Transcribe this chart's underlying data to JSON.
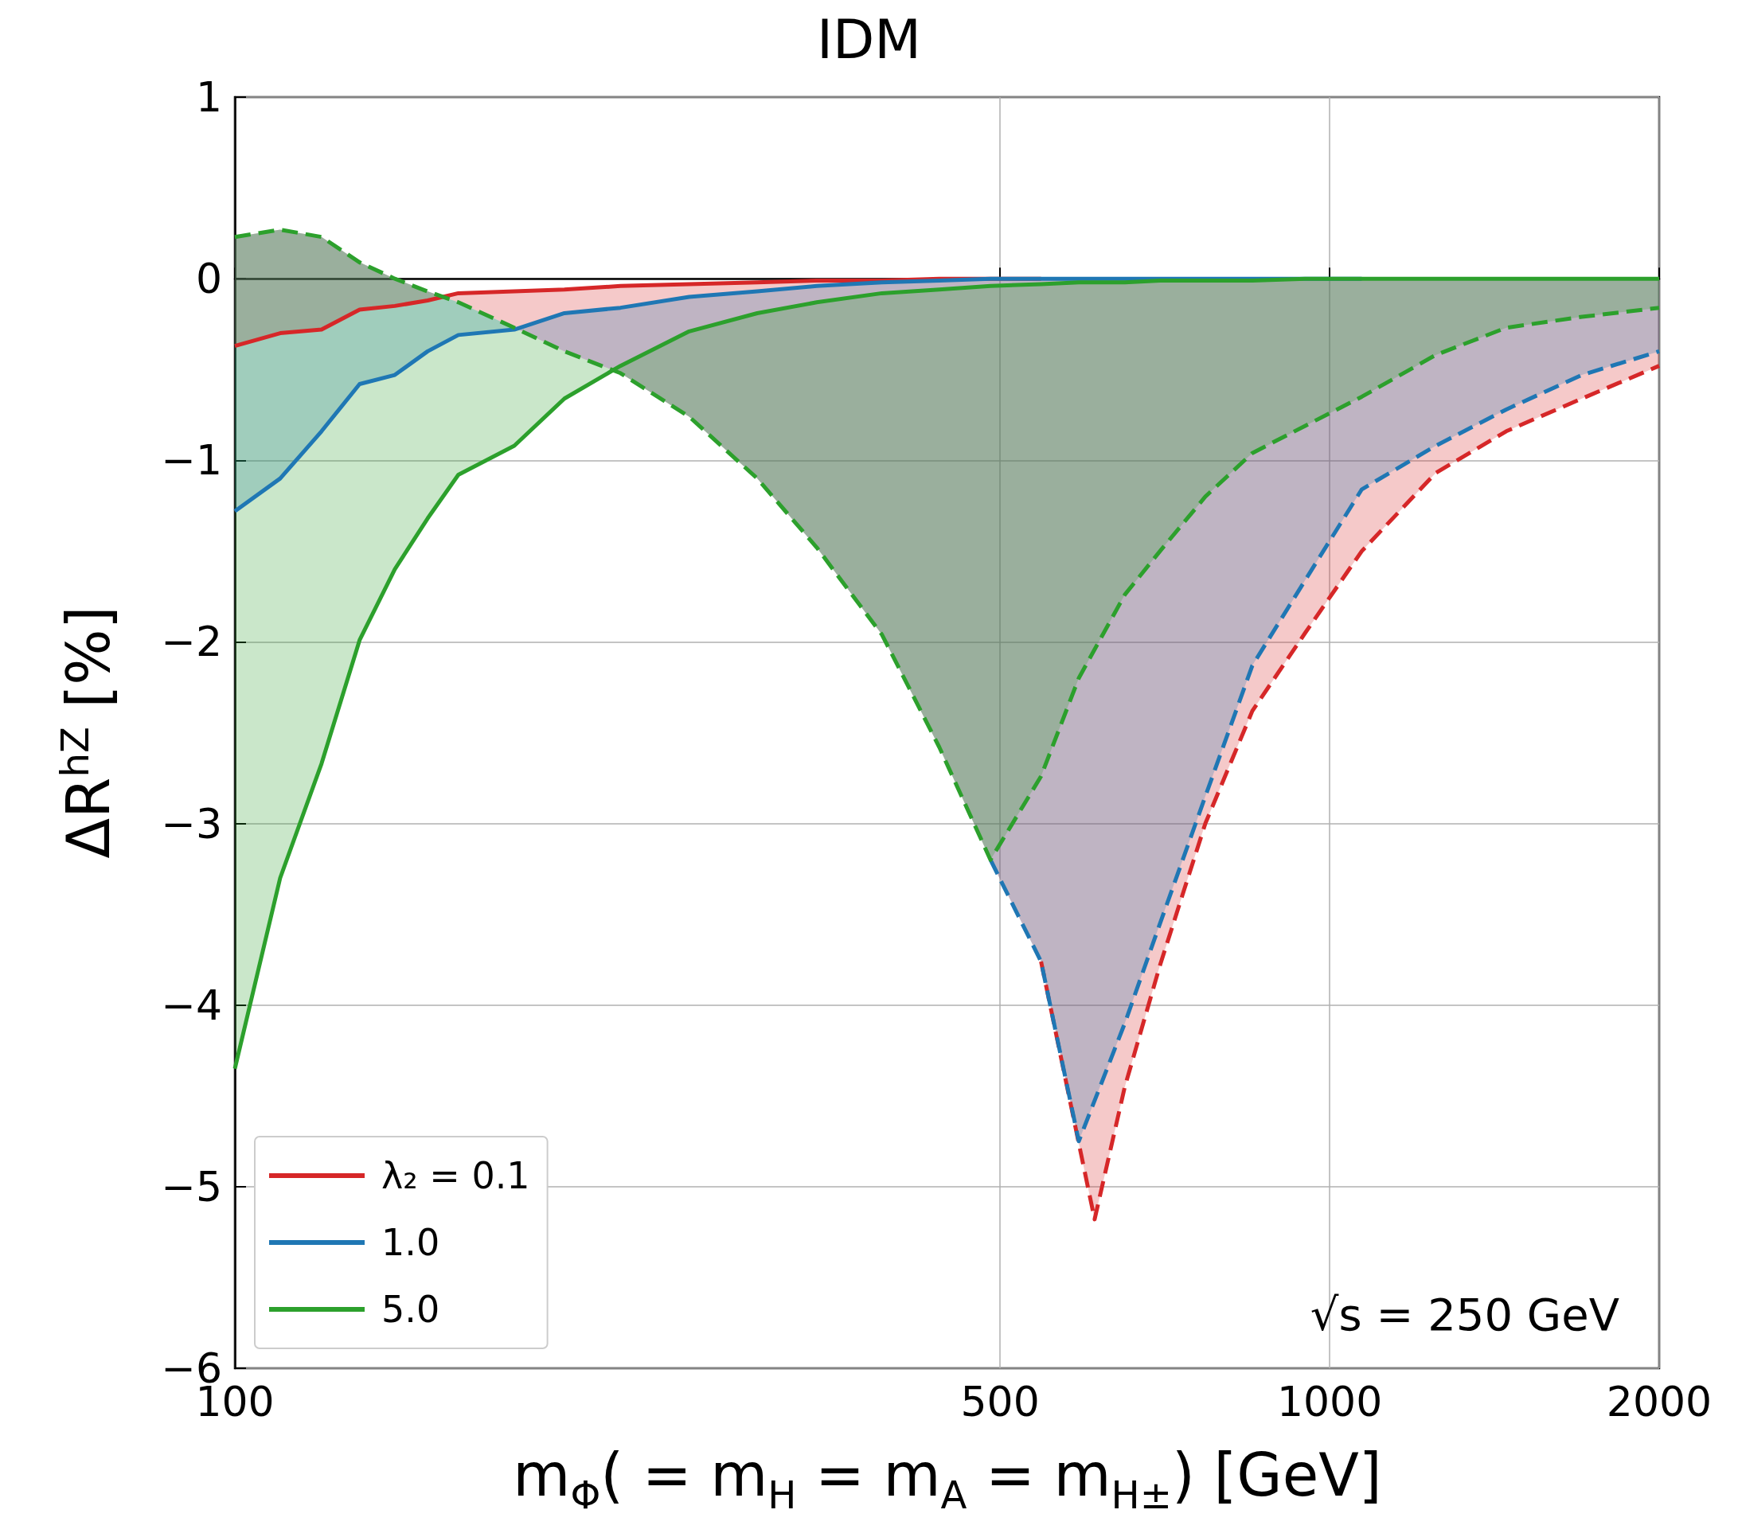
{
  "chart_data": {
    "type": "line",
    "title": "IDM",
    "xlabel": "m$_{Φ}$( = m$_{H}$ = m$_{A}$ = m$_{H±}$) [GeV]",
    "ylabel": "ΔR$^{hZ}$ [%]",
    "log": "x",
    "xlim": [
      100,
      2000
    ],
    "xticks": [
      100,
      500,
      1000,
      2000
    ],
    "ylim": [
      -6,
      1
    ],
    "yticks": [
      -6,
      -5,
      -4,
      -3,
      -2,
      -1,
      0,
      1
    ],
    "grid": true,
    "legend": "bottom left",
    "line_style": "solid",
    "marker": "none",
    "annotations": [
      "√s = 250 GeV"
    ],
    "series": [
      {
        "name": "λ₂ = 0.1",
        "color": "#d62728",
        "x": [
          100,
          110,
          120,
          130,
          140,
          150,
          160,
          180,
          200,
          225,
          260,
          300,
          340,
          390,
          440,
          490,
          545,
          610,
          650,
          700,
          770,
          850,
          950,
          1070,
          1250,
          1450,
          1700,
          2000
        ],
        "values": [
          -0.37,
          -0.3,
          -0.28,
          -0.17,
          -0.15,
          -0.12,
          -0.08,
          -0.07,
          -0.06,
          -0.04,
          -0.03,
          -0.02,
          -0.01,
          -0.01,
          0,
          0,
          0,
          null,
          null,
          null,
          null,
          null,
          null,
          null,
          null,
          null,
          null,
          null
        ],
        "upper": [
          -0.37,
          -0.3,
          -0.28,
          -0.17,
          -0.15,
          -0.12,
          -0.08,
          -0.07,
          -0.06,
          -0.04,
          -0.03,
          -0.02,
          -0.01,
          -0.01,
          0,
          0,
          0,
          0,
          0,
          0,
          0,
          0,
          0,
          0,
          0,
          0,
          0,
          0
        ],
        "lower": [
          0.23,
          0.27,
          0.23,
          0.09,
          0,
          -0.07,
          -0.13,
          -0.27,
          -0.4,
          -0.52,
          -0.76,
          -1.1,
          -1.48,
          -1.96,
          -2.58,
          -3.2,
          -3.76,
          -5.18,
          -4.45,
          -3.78,
          -3,
          -2.38,
          -1.95,
          -1.5,
          -1.07,
          -0.84,
          -0.66,
          -0.48
        ]
      },
      {
        "name": "1.0",
        "color": "#1f77b4",
        "x": [
          100,
          110,
          120,
          130,
          140,
          150,
          160,
          180,
          200,
          225,
          260,
          300,
          340,
          390,
          440,
          490,
          545,
          590,
          650,
          700,
          770,
          850,
          950,
          1070,
          1250,
          1450,
          1700,
          2000
        ],
        "values": [
          -1.28,
          -1.1,
          -0.84,
          -0.58,
          -0.53,
          -0.4,
          -0.31,
          -0.28,
          -0.19,
          -0.16,
          -0.1,
          -0.07,
          -0.04,
          -0.02,
          -0.01,
          0,
          0,
          0,
          0,
          0,
          0,
          0,
          0,
          0,
          null,
          null,
          null,
          null
        ],
        "upper": [
          -1.28,
          -1.1,
          -0.84,
          -0.58,
          -0.53,
          -0.4,
          -0.31,
          -0.28,
          -0.19,
          -0.16,
          -0.1,
          -0.07,
          -0.04,
          -0.02,
          -0.01,
          0,
          0,
          0,
          0,
          0,
          0,
          0,
          0,
          0,
          0,
          0,
          0,
          0
        ],
        "lower": [
          0.23,
          0.27,
          0.23,
          0.09,
          0,
          -0.07,
          -0.13,
          -0.27,
          -0.4,
          -0.52,
          -0.76,
          -1.1,
          -1.48,
          -1.96,
          -2.58,
          -3.2,
          -3.76,
          -4.75,
          -4.1,
          -3.55,
          -2.85,
          -2.13,
          -1.66,
          -1.16,
          -0.92,
          -0.72,
          -0.53,
          -0.4
        ]
      },
      {
        "name": "5.0",
        "color": "#2ca02c",
        "x": [
          100,
          110,
          120,
          130,
          140,
          150,
          160,
          180,
          200,
          225,
          260,
          300,
          340,
          390,
          440,
          490,
          545,
          590,
          650,
          700,
          770,
          850,
          950,
          1070,
          1250,
          1450,
          1700,
          2000
        ],
        "values": [
          -4.35,
          -3.3,
          -2.67,
          -1.99,
          -1.6,
          -1.32,
          -1.08,
          -0.92,
          -0.66,
          -0.48,
          -0.29,
          -0.19,
          -0.13,
          -0.08,
          -0.06,
          -0.04,
          -0.03,
          -0.02,
          -0.02,
          -0.01,
          -0.01,
          -0.01,
          0,
          0,
          0,
          0,
          0,
          0
        ],
        "upper": [
          -4.35,
          -3.3,
          -2.67,
          -1.99,
          -1.6,
          -1.32,
          -1.08,
          -0.92,
          -0.66,
          -0.48,
          -0.29,
          -0.19,
          -0.13,
          -0.08,
          -0.06,
          -0.04,
          -0.03,
          -0.02,
          -0.02,
          -0.01,
          -0.01,
          -0.01,
          0,
          0,
          0,
          0,
          0,
          0
        ],
        "lower": [
          0.23,
          0.27,
          0.23,
          0.09,
          0,
          -0.07,
          -0.13,
          -0.27,
          -0.4,
          -0.52,
          -0.76,
          -1.1,
          -1.48,
          -1.96,
          -2.58,
          -3.2,
          -2.74,
          -2.2,
          -1.74,
          -1.5,
          -1.2,
          -0.96,
          -0.81,
          -0.65,
          -0.42,
          -0.27,
          -0.21,
          -0.16
        ]
      },
      {
        "color": "#d62728",
        "line_style": "dashed",
        "x": [
          545,
          610,
          650,
          700,
          770,
          850,
          950,
          1070,
          1250,
          1450,
          1700,
          2000
        ],
        "values": [
          -3.76,
          -5.18,
          -4.45,
          -3.78,
          -3,
          -2.38,
          -1.95,
          -1.5,
          -1.07,
          -0.84,
          -0.66,
          -0.48
        ]
      },
      {
        "color": "#1f77b4",
        "line_style": "dashed",
        "x": [
          490,
          545,
          590,
          650,
          700,
          770,
          850,
          950,
          1070,
          1250,
          1450,
          1700,
          2000
        ],
        "values": [
          -3.2,
          -3.76,
          -4.75,
          -4.1,
          -3.55,
          -2.85,
          -2.13,
          -1.66,
          -1.16,
          -0.92,
          -0.72,
          -0.53,
          -0.4
        ]
      },
      {
        "color": "#2ca02c",
        "line_style": "dashed",
        "x": [
          100,
          110,
          120,
          130,
          140,
          150,
          160,
          180,
          200,
          225,
          260,
          300,
          340,
          390,
          440,
          490,
          545,
          590,
          650,
          700,
          770,
          850,
          950,
          1070,
          1250,
          1450,
          1700,
          2000
        ],
        "values": [
          0.23,
          0.27,
          0.23,
          0.09,
          0,
          -0.07,
          -0.13,
          -0.27,
          -0.4,
          -0.52,
          -0.76,
          -1.1,
          -1.48,
          -1.96,
          -2.58,
          -3.2,
          -2.74,
          -2.2,
          -1.74,
          -1.5,
          -1.2,
          -0.96,
          -0.81,
          -0.65,
          -0.42,
          -0.27,
          -0.21,
          -0.16
        ]
      }
    ]
  }
}
